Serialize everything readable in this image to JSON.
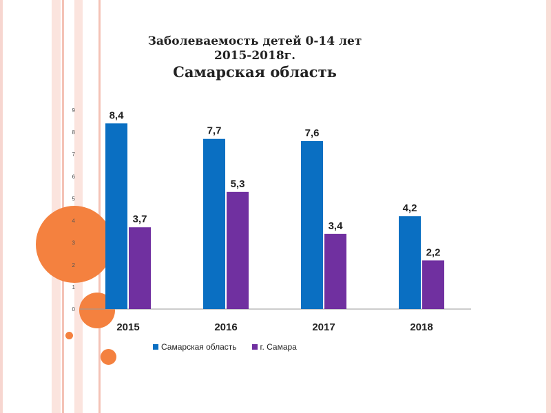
{
  "title": {
    "line1": "Заболеваемость детей 0-14 лет",
    "line2": "2015-2018г.",
    "line3": "Самарская область"
  },
  "colors": {
    "series1": "#0A6FC2",
    "series2": "#7030A0",
    "circle": "#F4813F",
    "stripe": "#F7D6D0"
  },
  "chart_data": {
    "type": "bar",
    "categories": [
      "2015",
      "2016",
      "2017",
      "2018"
    ],
    "series": [
      {
        "name": "Самарская область",
        "values": [
          8.4,
          7.7,
          7.6,
          4.2
        ],
        "labels": [
          "8,4",
          "7,7",
          "7,6",
          "4,2"
        ]
      },
      {
        "name": "г. Самара",
        "values": [
          3.7,
          5.3,
          3.4,
          2.2
        ],
        "labels": [
          "3,7",
          "5,3",
          "3,4",
          "2,2"
        ]
      }
    ],
    "ylim": [
      0,
      9
    ],
    "yticks": [
      "0",
      "1",
      "2",
      "3",
      "4",
      "5",
      "6",
      "7",
      "8",
      "9"
    ],
    "legend_position": "bottom"
  }
}
